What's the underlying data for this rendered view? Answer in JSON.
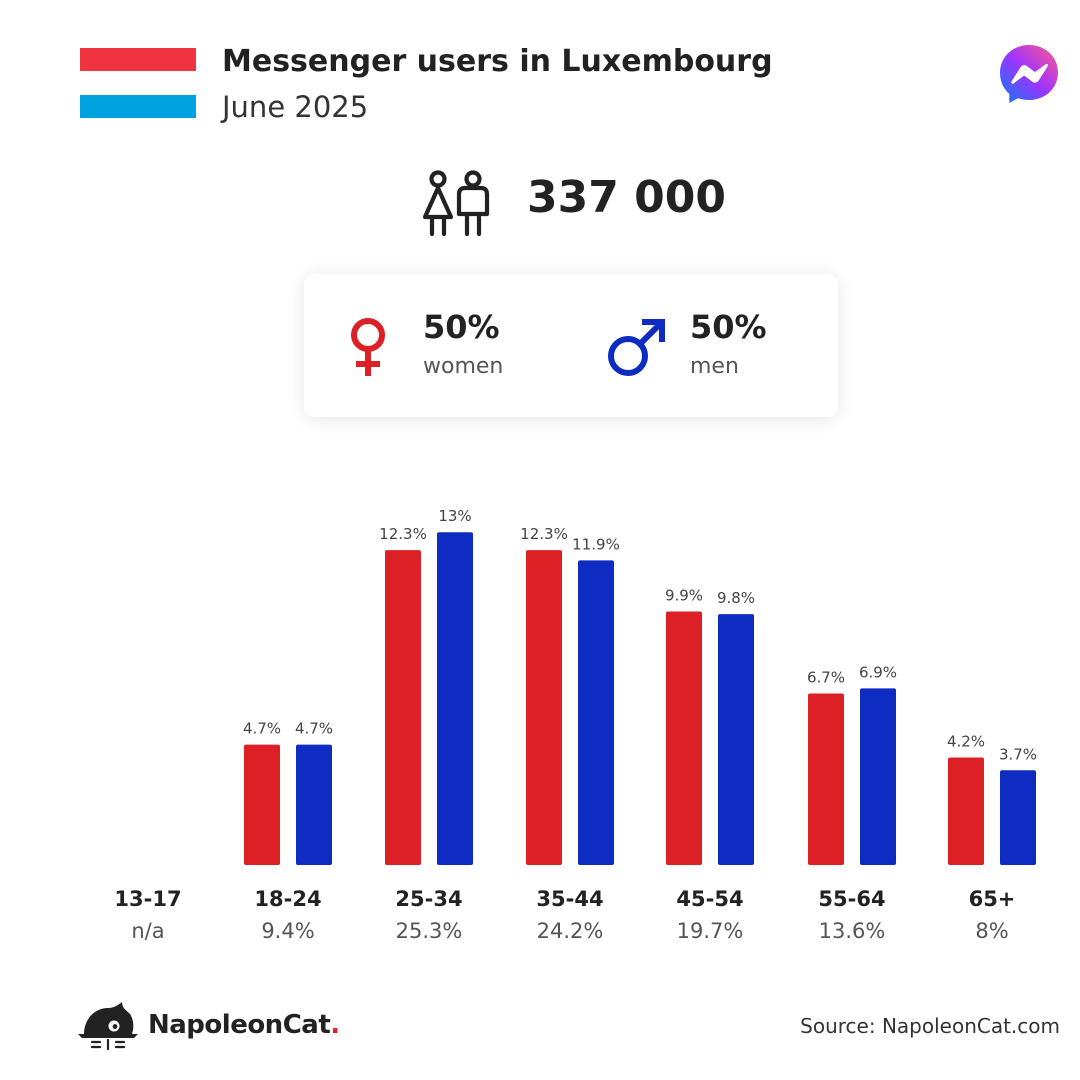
{
  "header": {
    "title": "Messenger users in Luxembourg",
    "subtitle": "June 2025",
    "flag_colors": [
      "#ef3340",
      "#ffffff",
      "#00a3e0"
    ]
  },
  "icons": {
    "flag": "luxembourg-flag-icon",
    "app": "messenger-logo-icon",
    "users": "people-icon",
    "female": "female-symbol-icon",
    "male": "male-symbol-icon",
    "brand": "napoleoncat-logo-icon"
  },
  "summary": {
    "total_users": "337 000",
    "women_pct": "50%",
    "women_label": "women",
    "men_pct": "50%",
    "men_label": "men"
  },
  "colors": {
    "women": "#dd1f26",
    "men": "#0f2cc2",
    "text": "#222222",
    "muted": "#555555"
  },
  "chart_data": {
    "type": "bar",
    "categories": [
      "13-17",
      "18-24",
      "25-34",
      "35-44",
      "45-54",
      "55-64",
      "65+"
    ],
    "category_totals": [
      "n/a",
      "9.4%",
      "25.3%",
      "24.2%",
      "19.7%",
      "13.6%",
      "8%"
    ],
    "series": [
      {
        "name": "women",
        "values": [
          null,
          4.7,
          12.3,
          12.3,
          9.9,
          6.7,
          4.2
        ],
        "labels": [
          "",
          "4.7%",
          "12.3%",
          "12.3%",
          "9.9%",
          "6.7%",
          "4.2%"
        ]
      },
      {
        "name": "men",
        "values": [
          null,
          4.7,
          13,
          11.9,
          9.8,
          6.9,
          3.7
        ],
        "labels": [
          "",
          "4.7%",
          "13%",
          "11.9%",
          "9.8%",
          "6.9%",
          "3.7%"
        ]
      }
    ],
    "ylim": [
      0,
      13
    ],
    "grid": false,
    "legend": "none"
  },
  "footer": {
    "brand_name": "NapoleonCat",
    "brand_dot": ".",
    "source": "Source: NapoleonCat.com"
  }
}
